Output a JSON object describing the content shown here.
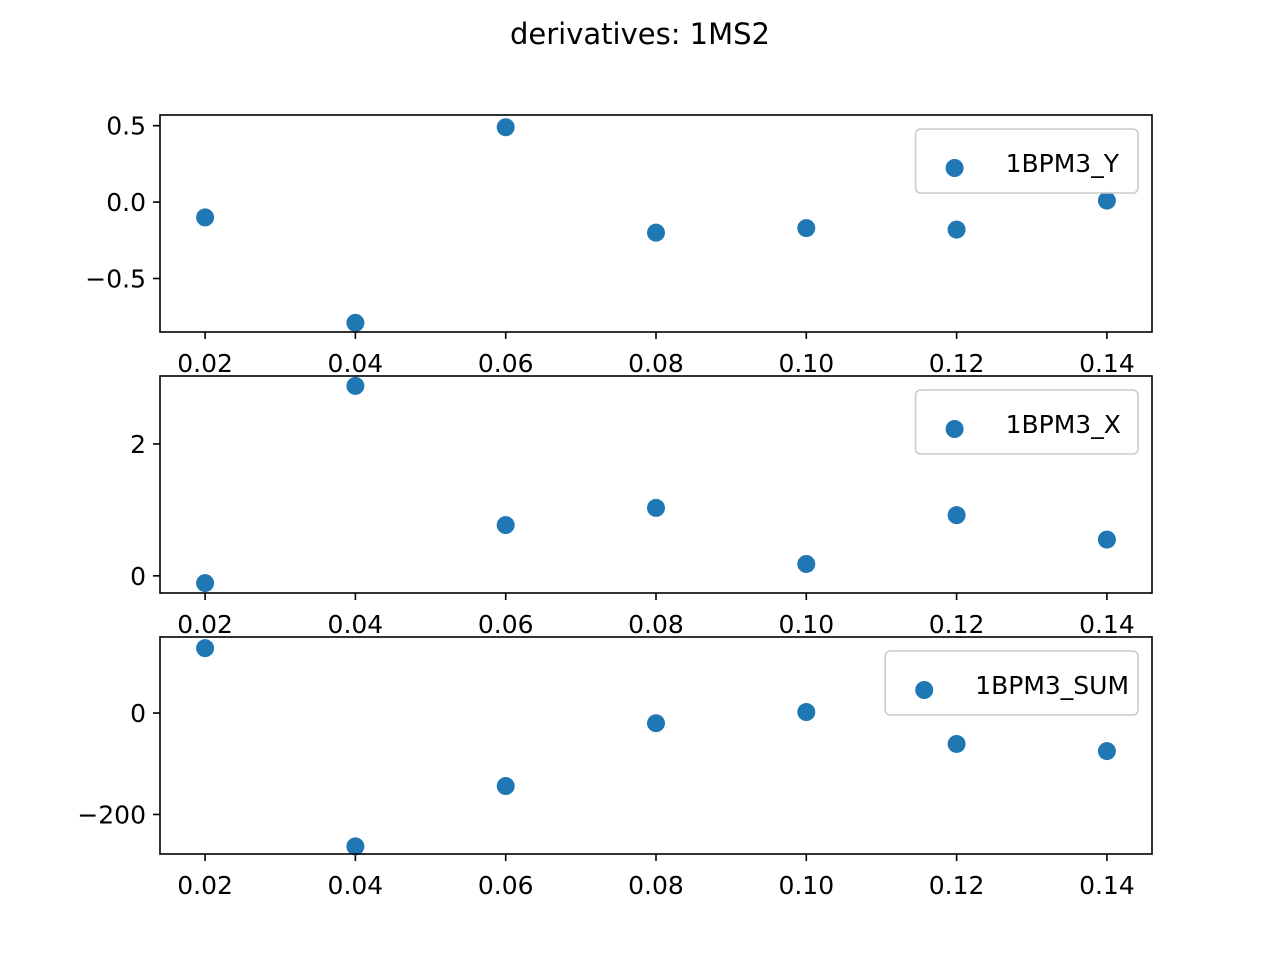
{
  "chart_data": {
    "title": "derivatives: 1MS2",
    "type": "scatter",
    "marker_color": "#1f77b4",
    "grid": false,
    "legend_position": "upper right",
    "subplots": [
      {
        "type": "scatter",
        "x": [
          0.02,
          0.04,
          0.06,
          0.08,
          0.1,
          0.12,
          0.14
        ],
        "xlim": [
          0.014,
          0.146
        ],
        "xticks": [
          "0.02",
          "0.04",
          "0.06",
          "0.08",
          "0.10",
          "0.12",
          "0.14"
        ],
        "ylim": [
          -0.85,
          0.57
        ],
        "yticks": [
          {
            "value": 0.5,
            "label": "0.5"
          },
          {
            "value": 0.0,
            "label": "0.0"
          },
          {
            "value": -0.5,
            "label": "−0.5"
          }
        ],
        "series": [
          {
            "name": "1BPM3_Y",
            "values": [
              -0.1,
              -0.79,
              0.49,
              -0.2,
              -0.17,
              -0.18,
              0.01
            ]
          }
        ]
      },
      {
        "type": "scatter",
        "x": [
          0.02,
          0.04,
          0.06,
          0.08,
          0.1,
          0.12,
          0.14
        ],
        "xlim": [
          0.014,
          0.146
        ],
        "xticks": [
          "0.02",
          "0.04",
          "0.06",
          "0.08",
          "0.10",
          "0.12",
          "0.14"
        ],
        "ylim": [
          -0.26,
          3.03
        ],
        "yticks": [
          {
            "value": 2,
            "label": "2"
          },
          {
            "value": 0,
            "label": "0"
          }
        ],
        "series": [
          {
            "name": "1BPM3_X",
            "values": [
              -0.11,
              2.88,
              0.77,
              1.03,
              0.18,
              0.92,
              0.55
            ]
          }
        ]
      },
      {
        "type": "scatter",
        "x": [
          0.02,
          0.04,
          0.06,
          0.08,
          0.1,
          0.12,
          0.14
        ],
        "xlim": [
          0.014,
          0.146
        ],
        "xticks": [
          "0.02",
          "0.04",
          "0.06",
          "0.08",
          "0.10",
          "0.12",
          "0.14"
        ],
        "ylim": [
          -278,
          150
        ],
        "yticks": [
          {
            "value": 0,
            "label": "0"
          },
          {
            "value": -200,
            "label": "−200"
          }
        ],
        "series": [
          {
            "name": "1BPM3_SUM",
            "values": [
              128,
              -263,
              -144,
              -20,
              2,
              -61,
              -75
            ]
          }
        ]
      }
    ]
  }
}
